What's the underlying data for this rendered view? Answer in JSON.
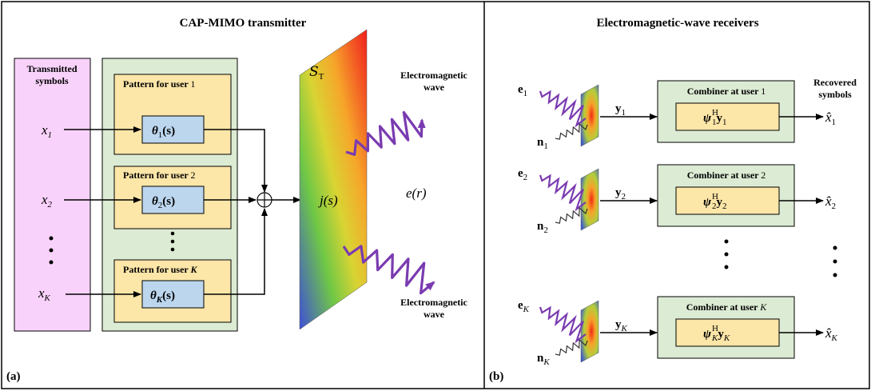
{
  "panel_a": {
    "title": "CAP-MIMO transmitter",
    "label": "(a)",
    "transmitted_label_line1": "Transmitted",
    "transmitted_label_line2": "symbols",
    "x_base": "x",
    "x_subs": [
      "1",
      "2",
      "K"
    ],
    "vdots": "⋮",
    "pattern_prefix": "Pattern for user",
    "pattern_users": [
      "1",
      "2",
      "K"
    ],
    "theta_base": "θ",
    "theta_arg": "(s)",
    "surface_label": "S",
    "surface_sub": "T",
    "current_label": "j(s)",
    "field_label": "e(r)",
    "wave_label_line1": "Electromagnetic",
    "wave_label_line2": "wave"
  },
  "panel_b": {
    "title": "Electromagnetic-wave receivers",
    "label": "(b)",
    "recovered_line1": "Recovered",
    "recovered_line2": "symbols",
    "e_base": "e",
    "n_base": "n",
    "y_base": "y",
    "xhat_base": "x̂",
    "subs": [
      "1",
      "2",
      "K"
    ],
    "combiner_prefix": "Combiner at user",
    "psi_base": "ψ",
    "psi_sup": "H"
  },
  "colors": {
    "pink_fill": "#f9d2fb",
    "green_fill": "#dcebd3",
    "yellow_fill": "#fce6a8",
    "blue_fill": "#bcd6ee",
    "wave": "#7a3bb0"
  }
}
